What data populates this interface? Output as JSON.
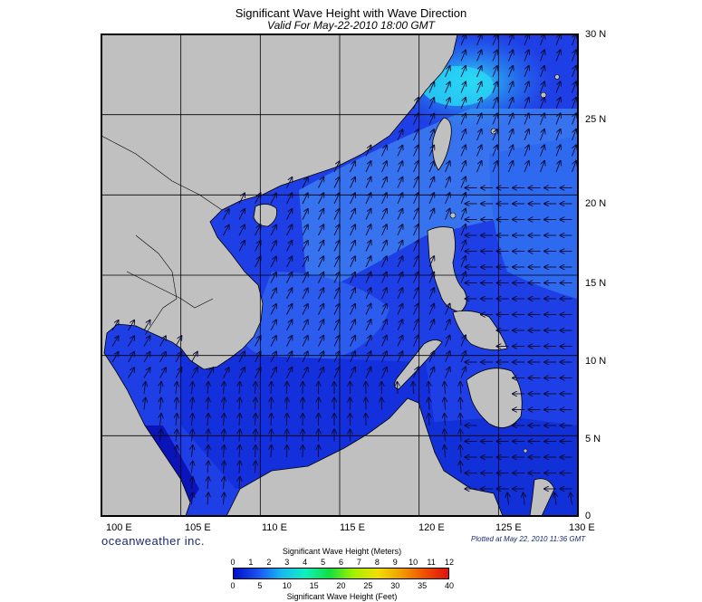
{
  "header": {
    "title": "Significant Wave Height with Wave Direction",
    "subtitle": "Valid For May-22-2010 18:00 GMT"
  },
  "map": {
    "lon_range": [
      100,
      130
    ],
    "lat_range": [
      0,
      30
    ],
    "lon_labels": [
      "100 E",
      "105 E",
      "110 E",
      "115 E",
      "120 E",
      "125 E",
      "130 E"
    ],
    "lat_labels": [
      "30 N",
      "25 N",
      "20 N",
      "15 N",
      "10 N",
      "5 N",
      "0"
    ],
    "colors": {
      "land": "#c0c0c0",
      "sea_base": "#1f3fe6",
      "sea_light": "#3c7cf0",
      "sea_mid": "#2b5cee",
      "sea_dark": "#0e1ed0",
      "sea_cyan": "#25d6f4",
      "grid": "#000000",
      "arrow": "#0a0a30"
    }
  },
  "footer": {
    "brand": "oceanweather inc.",
    "plotted": "Plotted at May 22, 2010 11:36 GMT"
  },
  "legend": {
    "meters_title": "Significant Wave Height (Meters)",
    "feet_title": "Significant Wave Height (Feet)",
    "meters_ticks": [
      "0",
      "1",
      "2",
      "3",
      "4",
      "5",
      "6",
      "7",
      "8",
      "9",
      "10",
      "11",
      "12"
    ],
    "feet_ticks": [
      "0",
      "5",
      "10",
      "15",
      "20",
      "25",
      "30",
      "35",
      "40"
    ],
    "gradient": [
      "#0010c8",
      "#1a50f0",
      "#18b8f0",
      "#10f0c0",
      "#10e040",
      "#a0f000",
      "#f0e000",
      "#f0a000",
      "#f05000",
      "#e01010"
    ]
  }
}
